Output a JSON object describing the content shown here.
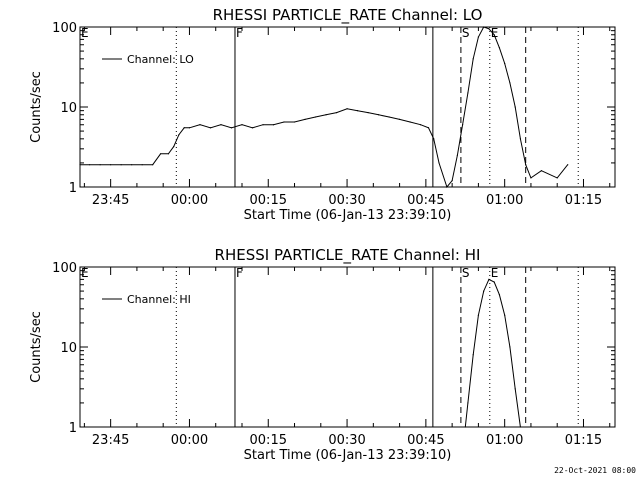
{
  "footer": {
    "timestamp": "22-Oct-2021 08:00"
  },
  "chart_data": [
    {
      "type": "line",
      "title": "RHESSI PARTICLE_RATE Channel: LO",
      "xlabel": "Start Time (06-Jan-13 23:39:10)",
      "ylabel": "Counts/sec",
      "y_scale": "log",
      "ylim": [
        1,
        100
      ],
      "xlim": [
        "23:39:10",
        "01:21:00"
      ],
      "x_ticks": [
        "23:45",
        "00:00",
        "00:15",
        "00:30",
        "00:45",
        "01:00",
        "01:15"
      ],
      "y_ticks": [
        "1",
        "10",
        "100"
      ],
      "legend": {
        "entries": [
          "Channel: LO"
        ],
        "placement": "top-left"
      },
      "markers": [
        {
          "label": "E",
          "time": "23:39:10",
          "style": "none"
        },
        {
          "label": "",
          "time": "23:57:30",
          "style": "dotted"
        },
        {
          "label": "F",
          "time": "00:08:40",
          "style": "solid"
        },
        {
          "label": "",
          "time": "00:46:20",
          "style": "solid"
        },
        {
          "label": "S",
          "time": "00:51:40",
          "style": "dashed"
        },
        {
          "label": "E",
          "time": "00:57:10",
          "style": "dotted"
        },
        {
          "label": "",
          "time": "01:04:00",
          "style": "dashed"
        },
        {
          "label": "",
          "time": "01:14:00",
          "style": "dotted"
        }
      ],
      "series": [
        {
          "name": "Channel: LO",
          "x": [
            "23:39:10",
            "23:41:00",
            "23:43:00",
            "23:45:00",
            "23:47:00",
            "23:49:00",
            "23:51:00",
            "23:53:00",
            "23:54:30",
            "23:56:00",
            "23:57:00",
            "23:58:00",
            "23:59:00",
            "00:00:00",
            "00:02:00",
            "00:04:00",
            "00:06:00",
            "00:08:00",
            "00:10:00",
            "00:12:00",
            "00:14:00",
            "00:16:00",
            "00:18:00",
            "00:20:00",
            "00:22:00",
            "00:24:00",
            "00:26:00",
            "00:28:00",
            "00:30:00",
            "00:32:00",
            "00:34:00",
            "00:36:00",
            "00:38:00",
            "00:40:00",
            "00:42:00",
            "00:44:00",
            "00:45:30",
            "00:46:30",
            "00:47:30",
            "00:49:00",
            "00:50:00",
            "00:51:00",
            "00:52:00",
            "00:53:00",
            "00:54:00",
            "00:55:00",
            "00:56:00",
            "00:57:00",
            "00:58:00",
            "00:59:00",
            "01:00:00",
            "01:01:00",
            "01:02:00",
            "01:03:00",
            "01:04:00",
            "01:05:00",
            "01:07:00",
            "01:10:00",
            "01:12:00"
          ],
          "values": [
            1.9,
            1.9,
            1.9,
            1.9,
            1.9,
            1.9,
            1.9,
            1.9,
            2.6,
            2.6,
            3.2,
            4.5,
            5.5,
            5.5,
            6.0,
            5.5,
            6.0,
            5.5,
            6.0,
            5.5,
            6.0,
            6.0,
            6.5,
            6.5,
            7.0,
            7.5,
            8.0,
            8.5,
            9.5,
            9.0,
            8.5,
            8.0,
            7.5,
            7.0,
            6.5,
            6.0,
            5.5,
            4.0,
            2.0,
            1.0,
            1.2,
            2.5,
            6.0,
            15.0,
            40.0,
            75.0,
            100.0,
            95.0,
            80.0,
            55.0,
            35.0,
            20.0,
            10.0,
            4.0,
            1.9,
            1.3,
            1.6,
            1.3,
            1.9
          ]
        }
      ]
    },
    {
      "type": "line",
      "title": "RHESSI PARTICLE_RATE Channel: HI",
      "xlabel": "Start Time (06-Jan-13 23:39:10)",
      "ylabel": "Counts/sec",
      "y_scale": "log",
      "ylim": [
        1,
        100
      ],
      "xlim": [
        "23:39:10",
        "01:21:00"
      ],
      "x_ticks": [
        "23:45",
        "00:00",
        "00:15",
        "00:30",
        "00:45",
        "01:00",
        "01:15"
      ],
      "y_ticks": [
        "1",
        "10",
        "100"
      ],
      "legend": {
        "entries": [
          "Channel: HI"
        ],
        "placement": "top-left"
      },
      "markers": [
        {
          "label": "E",
          "time": "23:39:10",
          "style": "none"
        },
        {
          "label": "",
          "time": "23:57:30",
          "style": "dotted"
        },
        {
          "label": "F",
          "time": "00:08:40",
          "style": "solid"
        },
        {
          "label": "",
          "time": "00:46:20",
          "style": "solid"
        },
        {
          "label": "S",
          "time": "00:51:40",
          "style": "dashed"
        },
        {
          "label": "E",
          "time": "00:57:10",
          "style": "dotted"
        },
        {
          "label": "",
          "time": "01:04:00",
          "style": "dashed"
        },
        {
          "label": "",
          "time": "01:14:00",
          "style": "dotted"
        }
      ],
      "series": [
        {
          "name": "Channel: HI",
          "x": [
            "00:52:30",
            "00:53:00",
            "00:54:00",
            "00:55:00",
            "00:56:00",
            "00:57:00",
            "00:58:00",
            "00:59:00",
            "01:00:00",
            "01:01:00",
            "01:02:00",
            "01:03:00"
          ],
          "values": [
            1.0,
            2.0,
            8.0,
            25.0,
            50.0,
            70.0,
            65.0,
            45.0,
            25.0,
            10.0,
            3.0,
            1.0
          ]
        }
      ]
    }
  ]
}
